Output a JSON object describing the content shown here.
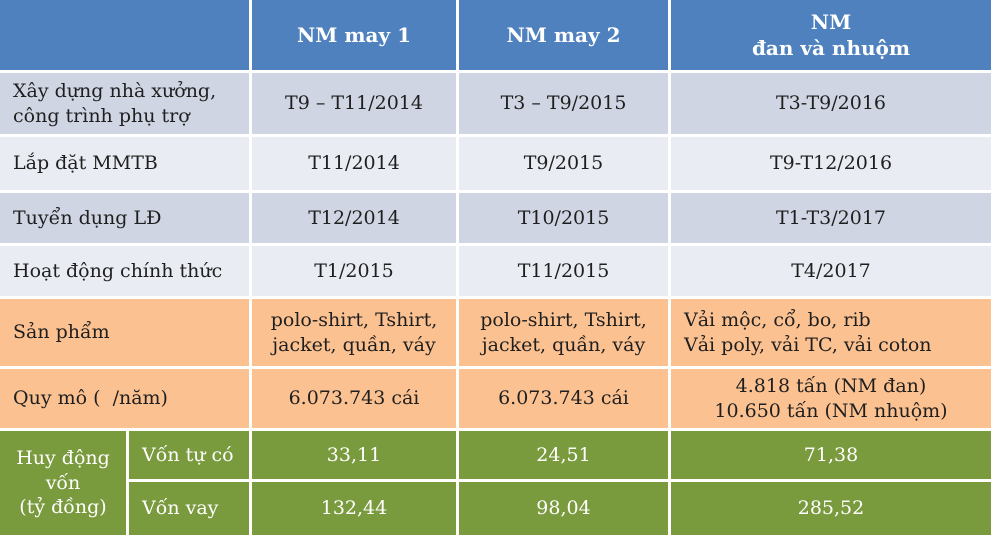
{
  "colors": {
    "header_bg": "#4e81bd",
    "band_dark": "#d0d5e3",
    "band_light": "#e9ecf3",
    "product_bg": "#fbc191",
    "capital_bg": "#7a9a3e",
    "text_dark": "#1f1f1f",
    "text_light": "#ffffff"
  },
  "table": {
    "header": [
      "",
      "NM may 1",
      "NM may 2",
      "NM\nđan và nhuộm"
    ],
    "schedule_rows": [
      {
        "label": "Xây dựng nhà xưởng,\ncông trình phụ trợ",
        "values": [
          "T9 – T11/2014",
          "T3 – T9/2015",
          "T3-T9/2016"
        ]
      },
      {
        "label": "Lắp đặt MMTB",
        "values": [
          "T11/2014",
          "T9/2015",
          "T9-T12/2016"
        ]
      },
      {
        "label": "Tuyển dụng LĐ",
        "values": [
          "T12/2014",
          "T10/2015",
          "T1-T3/2017"
        ]
      },
      {
        "label": "Hoạt động chính thức",
        "values": [
          "T1/2015",
          "T11/2015",
          "T4/2017"
        ]
      }
    ],
    "product_rows": [
      {
        "label": "Sản phẩm",
        "values": [
          "polo-shirt, Tshirt,\njacket, quần, váy",
          "polo-shirt, Tshirt,\njacket, quần, váy",
          "Vải mộc, cổ, bo, rib\nVải poly, vải TC, vải coton"
        ]
      },
      {
        "label": "Quy mô (  /năm)",
        "values": [
          "6.073.743 cái",
          "6.073.743 cái",
          "4.818 tấn (NM đan)\n10.650 tấn (NM nhuộm)"
        ]
      }
    ],
    "capital_section": {
      "label": "Huy động\nvốn\n(tỷ đồng)",
      "rows": [
        {
          "label": "Vốn tự có",
          "values": [
            "33,11",
            "24,51",
            "71,38"
          ]
        },
        {
          "label": "Vốn vay",
          "values": [
            "132,44",
            "98,04",
            "285,52"
          ]
        }
      ]
    }
  }
}
